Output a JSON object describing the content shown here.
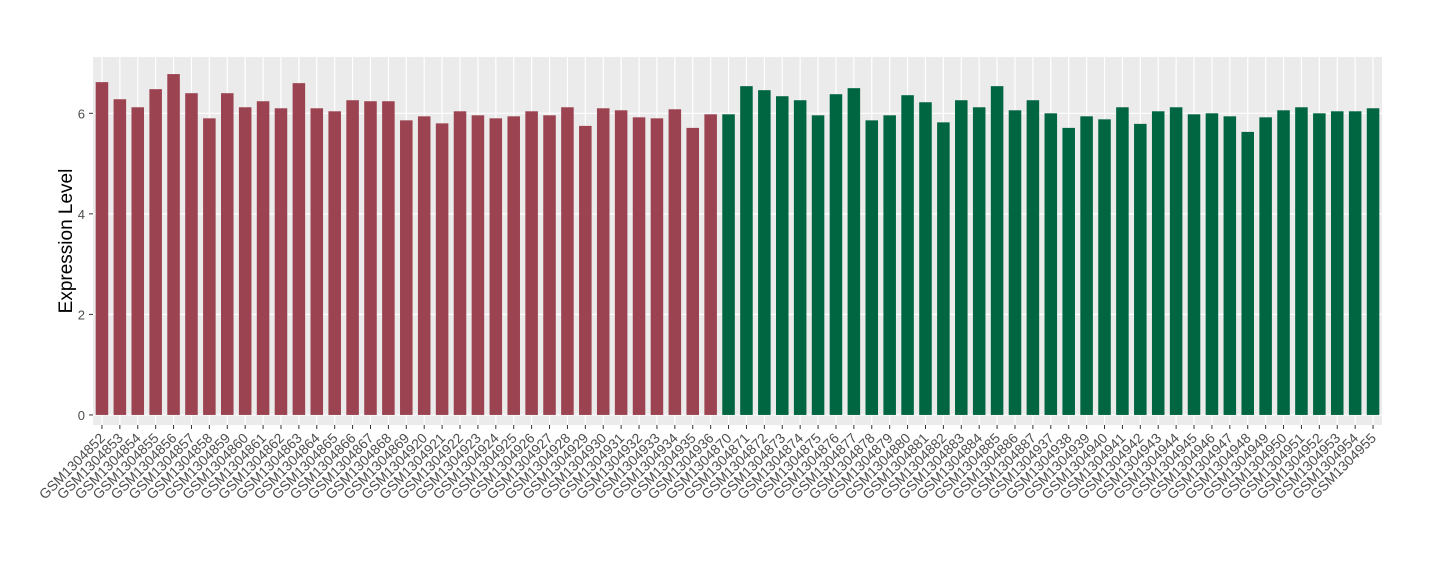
{
  "chart_data": {
    "type": "bar",
    "y_label": "Expression Level",
    "series": [
      {
        "color": "#9b4350",
        "categories": [
          "GSM1304852",
          "GSM1304853",
          "GSM1304854",
          "GSM1304855",
          "GSM1304856",
          "GSM1304857",
          "GSM1304858",
          "GSM1304859",
          "GSM1304860",
          "GSM1304861",
          "GSM1304862",
          "GSM1304863",
          "GSM1304864",
          "GSM1304865",
          "GSM1304866",
          "GSM1304867",
          "GSM1304868",
          "GSM1304869",
          "GSM1304920",
          "GSM1304921",
          "GSM1304922",
          "GSM1304923",
          "GSM1304924",
          "GSM1304925",
          "GSM1304926",
          "GSM1304927",
          "GSM1304928",
          "GSM1304929",
          "GSM1304930",
          "GSM1304931",
          "GSM1304932",
          "GSM1304933",
          "GSM1304934",
          "GSM1304935",
          "GSM1304936"
        ],
        "values": [
          6.62,
          6.28,
          6.12,
          6.48,
          6.78,
          6.4,
          5.9,
          6.4,
          6.12,
          6.24,
          6.1,
          6.6,
          6.1,
          6.04,
          6.26,
          6.24,
          6.24,
          5.86,
          5.94,
          5.8,
          6.04,
          5.96,
          5.9,
          5.94,
          6.04,
          5.96,
          6.12,
          5.75,
          6.1,
          6.06,
          5.92,
          5.9,
          6.08,
          5.71,
          5.98
        ]
      },
      {
        "color": "#006641",
        "categories": [
          "GSM1304870",
          "GSM1304871",
          "GSM1304872",
          "GSM1304873",
          "GSM1304874",
          "GSM1304875",
          "GSM1304876",
          "GSM1304877",
          "GSM1304878",
          "GSM1304879",
          "GSM1304880",
          "GSM1304881",
          "GSM1304882",
          "GSM1304883",
          "GSM1304884",
          "GSM1304885",
          "GSM1304886",
          "GSM1304887",
          "GSM1304937",
          "GSM1304938",
          "GSM1304939",
          "GSM1304940",
          "GSM1304941",
          "GSM1304942",
          "GSM1304943",
          "GSM1304944",
          "GSM1304945",
          "GSM1304946",
          "GSM1304947",
          "GSM1304948",
          "GSM1304949",
          "GSM1304950",
          "GSM1304951",
          "GSM1304952",
          "GSM1304953",
          "GSM1304954",
          "GSM1304955"
        ],
        "values": [
          5.98,
          6.54,
          6.46,
          6.34,
          6.26,
          5.96,
          6.38,
          6.5,
          5.86,
          5.96,
          6.36,
          6.22,
          5.82,
          6.26,
          6.12,
          6.54,
          6.06,
          6.26,
          6.0,
          5.71,
          5.94,
          5.88,
          6.12,
          5.79,
          6.04,
          6.12,
          5.98,
          6.0,
          5.94,
          5.63,
          5.92,
          6.06,
          6.12,
          6.0,
          6.04,
          6.04,
          6.1
        ]
      }
    ],
    "ylim": [
      -0.2,
      7.12
    ],
    "yticks": [
      0,
      2,
      4,
      6
    ],
    "grid": true
  }
}
